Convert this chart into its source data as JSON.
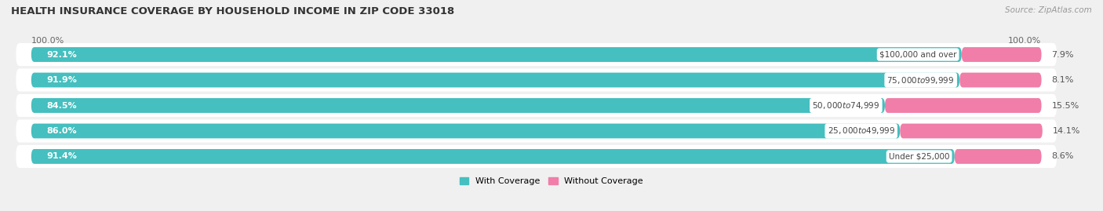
{
  "title": "HEALTH INSURANCE COVERAGE BY HOUSEHOLD INCOME IN ZIP CODE 33018",
  "source": "Source: ZipAtlas.com",
  "categories": [
    "Under $25,000",
    "$25,000 to $49,999",
    "$50,000 to $74,999",
    "$75,000 to $99,999",
    "$100,000 and over"
  ],
  "with_coverage": [
    91.4,
    86.0,
    84.5,
    91.9,
    92.1
  ],
  "without_coverage": [
    8.6,
    14.1,
    15.5,
    8.1,
    7.9
  ],
  "color_with": "#45bfbf",
  "color_without": "#f07ea8",
  "row_bg_color": "#e8e8e8",
  "fig_bg_color": "#f0f0f0",
  "title_fontsize": 9.5,
  "label_fontsize": 8,
  "cat_fontsize": 7.5,
  "tick_fontsize": 8,
  "legend_fontsize": 8,
  "source_fontsize": 7.5,
  "x_left_label": "100.0%",
  "x_right_label": "100.0%"
}
